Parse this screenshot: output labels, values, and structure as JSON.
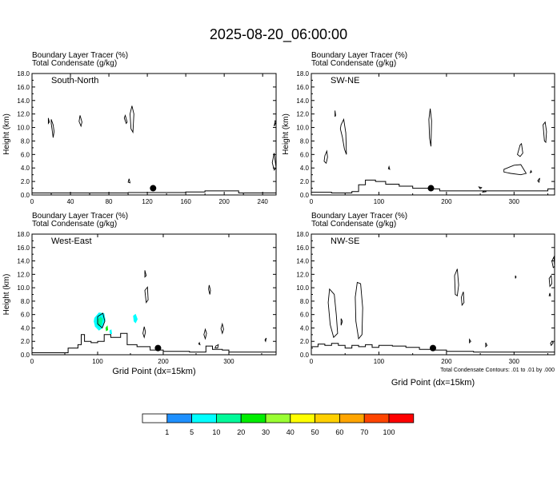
{
  "title": "2025-08-20_06:00:00",
  "colorbar": {
    "colors": [
      "#ffffff",
      "#1e90ff",
      "#00ffff",
      "#00fa9a",
      "#00ee00",
      "#9aff32",
      "#ffff00",
      "#ffd000",
      "#ffa500",
      "#ff4500",
      "#ff0000"
    ],
    "labels": [
      "1",
      "5",
      "10",
      "20",
      "30",
      "40",
      "50",
      "60",
      "70",
      "100"
    ]
  },
  "colors": {
    "axis": "#000000",
    "tracer_blue": "#1e90ff",
    "tracer_cyan": "#00ffff",
    "tracer_green": "#00fa9a"
  },
  "chart_data": [
    {
      "type": "contour",
      "header_line1": "Boundary Layer Tracer   (%)",
      "header_line2": "Total Condensate   (g/kg)",
      "label": "South-North",
      "xlabel": "",
      "ylabel": "Height (km)",
      "xlim": [
        0,
        254
      ],
      "ylim": [
        0,
        18
      ],
      "xticks": [
        "0",
        "40",
        "80",
        "120",
        "160",
        "200",
        "240"
      ],
      "yticks": [
        "0.0",
        "2.0",
        "4.0",
        "6.0",
        "8.0",
        "10.0",
        "12.0",
        "14.0",
        "16.0",
        "18.0"
      ],
      "marker": {
        "x": 126,
        "y": 1.0
      },
      "terrain": [
        [
          0,
          0.3
        ],
        [
          60,
          0.3
        ],
        [
          100,
          0.35
        ],
        [
          160,
          0.45
        ],
        [
          180,
          0.6
        ],
        [
          210,
          0.6
        ],
        [
          215,
          0.3
        ],
        [
          254,
          0.3
        ]
      ],
      "contours": [
        [
          [
            20,
            11.2
          ],
          [
            22,
            10.4
          ],
          [
            23,
            9.4
          ],
          [
            22,
            8.5
          ],
          [
            21,
            9.6
          ],
          [
            20,
            10.6
          ]
        ],
        [
          [
            17,
            11.4
          ],
          [
            18,
            10.8
          ],
          [
            17,
            10.6
          ]
        ],
        [
          [
            50,
            11.8
          ],
          [
            52,
            10.8
          ],
          [
            51,
            10.2
          ],
          [
            49,
            10.9
          ]
        ],
        [
          [
            97,
            11.8
          ],
          [
            99,
            10.8
          ],
          [
            98,
            10.6
          ],
          [
            96,
            11.4
          ]
        ],
        [
          [
            104,
            13.2
          ],
          [
            106,
            12.0
          ],
          [
            105,
            9.3
          ],
          [
            103,
            9.8
          ],
          [
            102,
            12.0
          ]
        ],
        [
          [
            101,
            2.4
          ],
          [
            102,
            1.8
          ],
          [
            100,
            1.9
          ]
        ],
        [
          [
            252,
            10.2
          ],
          [
            253,
            11.0
          ],
          [
            254,
            10.8
          ]
        ],
        [
          [
            252,
            6.2
          ],
          [
            250,
            4.8
          ],
          [
            252,
            3.7
          ],
          [
            254,
            4.0
          ]
        ]
      ]
    },
    {
      "type": "contour",
      "header_line1": "Boundary Layer Tracer   (%)",
      "header_line2": "Total Condensate   (g/kg)",
      "label": "SW-NE",
      "xlabel": "",
      "ylabel": "Height (km)",
      "xlim": [
        0,
        360
      ],
      "ylim": [
        0,
        18
      ],
      "xticks": [
        "0",
        "100",
        "200",
        "300"
      ],
      "yticks": [
        "0.0",
        "2.0",
        "4.0",
        "6.0",
        "8.0",
        "10.0",
        "12.0",
        "14.0",
        "16.0",
        "18.0"
      ],
      "marker": {
        "x": 177,
        "y": 1.0
      },
      "terrain": [
        [
          0,
          0.4
        ],
        [
          30,
          0.3
        ],
        [
          60,
          0.5
        ],
        [
          70,
          1.5
        ],
        [
          80,
          2.2
        ],
        [
          95,
          2.0
        ],
        [
          110,
          1.6
        ],
        [
          130,
          1.3
        ],
        [
          150,
          1.0
        ],
        [
          175,
          0.9
        ],
        [
          190,
          0.6
        ],
        [
          220,
          0.6
        ],
        [
          260,
          0.6
        ],
        [
          320,
          0.6
        ],
        [
          350,
          0.9
        ],
        [
          360,
          0.6
        ]
      ],
      "contours": [
        [
          [
            20,
            5.8
          ],
          [
            23,
            6.5
          ],
          [
            24,
            5.6
          ],
          [
            22,
            4.7
          ],
          [
            19,
            5.0
          ]
        ],
        [
          [
            44,
            10.4
          ],
          [
            48,
            11.2
          ],
          [
            51,
            9.2
          ],
          [
            52,
            6.0
          ],
          [
            49,
            6.8
          ],
          [
            46,
            8.6
          ],
          [
            43,
            9.8
          ]
        ],
        [
          [
            35,
            12.5
          ],
          [
            36,
            11.8
          ],
          [
            35,
            11.6
          ]
        ],
        [
          [
            115,
            4.2
          ],
          [
            116,
            3.8
          ],
          [
            114,
            3.9
          ]
        ],
        [
          [
            176,
            12.8
          ],
          [
            178,
            11.0
          ],
          [
            177,
            7.2
          ],
          [
            175,
            8.4
          ],
          [
            174,
            11.2
          ]
        ],
        [
          [
            305,
            6.0
          ],
          [
            309,
            7.4
          ],
          [
            311,
            7.6
          ],
          [
            313,
            6.2
          ],
          [
            309,
            5.7
          ]
        ],
        [
          [
            285,
            3.8
          ],
          [
            300,
            4.4
          ],
          [
            310,
            4.5
          ],
          [
            318,
            3.2
          ],
          [
            310,
            3.0
          ],
          [
            295,
            3.2
          ],
          [
            285,
            3.4
          ]
        ],
        [
          [
            343,
            10.4
          ],
          [
            346,
            10.8
          ],
          [
            348,
            9.4
          ],
          [
            347,
            7.8
          ],
          [
            345,
            8.0
          ]
        ],
        [
          [
            325,
            3.6
          ],
          [
            326,
            3.4
          ],
          [
            324,
            3.3
          ]
        ],
        [
          [
            335,
            2.1
          ],
          [
            338,
            2.5
          ],
          [
            337,
            1.9
          ]
        ],
        [
          [
            248,
            1.2
          ],
          [
            252,
            1.1
          ],
          [
            250,
            0.9
          ]
        ],
        [
          [
            253,
            0.4
          ],
          [
            256,
            0.6
          ],
          [
            259,
            0.5
          ]
        ]
      ]
    },
    {
      "type": "contour",
      "header_line1": "Boundary Layer Tracer   (%)",
      "header_line2": "Total Condensate   (g/kg)",
      "label": "West-East",
      "xlabel": "Grid Point (dx=15km)",
      "ylabel": "Height (km)",
      "xlim": [
        0,
        372
      ],
      "ylim": [
        0,
        18
      ],
      "xticks": [
        "0",
        "100",
        "200",
        "300"
      ],
      "yticks": [
        "0.0",
        "2.0",
        "4.0",
        "6.0",
        "8.0",
        "10.0",
        "12.0",
        "14.0",
        "16.0",
        "18.0"
      ],
      "marker": {
        "x": 192,
        "y": 1.0
      },
      "terrain": [
        [
          0,
          0.3
        ],
        [
          40,
          0.3
        ],
        [
          55,
          1.0
        ],
        [
          70,
          1.5
        ],
        [
          75,
          3.0
        ],
        [
          80,
          2.0
        ],
        [
          90,
          1.8
        ],
        [
          100,
          2.0
        ],
        [
          110,
          3.0
        ],
        [
          120,
          2.6
        ],
        [
          135,
          3.2
        ],
        [
          145,
          1.5
        ],
        [
          160,
          1.2
        ],
        [
          180,
          0.7
        ],
        [
          200,
          0.5
        ],
        [
          240,
          0.4
        ],
        [
          265,
          1.3
        ],
        [
          275,
          0.8
        ],
        [
          290,
          0.7
        ],
        [
          300,
          0.4
        ],
        [
          372,
          0.3
        ]
      ],
      "tracer": [
        {
          "value": 5,
          "points": [
            [
              95,
              5.5
            ],
            [
              102,
              6.3
            ],
            [
              110,
              6.2
            ],
            [
              112,
              5.2
            ],
            [
              108,
              4.0
            ],
            [
              102,
              3.6
            ],
            [
              96,
              4.2
            ],
            [
              94,
              5.0
            ]
          ]
        },
        {
          "value": 10,
          "points": [
            [
              100,
              5.2
            ],
            [
              104,
              5.7
            ],
            [
              108,
              5.4
            ],
            [
              106,
              4.4
            ],
            [
              101,
              4.3
            ]
          ]
        },
        {
          "value": 20,
          "points": [
            [
              112,
              4.0
            ],
            [
              115,
              4.4
            ],
            [
              116,
              3.7
            ],
            [
              113,
              3.5
            ]
          ]
        },
        {
          "value": 5,
          "points": [
            [
              154,
              5.8
            ],
            [
              158,
              6.1
            ],
            [
              161,
              5.3
            ],
            [
              158,
              4.7
            ],
            [
              155,
              5.0
            ]
          ]
        },
        {
          "value": 5,
          "points": [
            [
              118,
              3.6
            ],
            [
              121,
              3.8
            ],
            [
              122,
              3.1
            ],
            [
              119,
              3.1
            ]
          ]
        }
      ],
      "contours": [
        [
          [
            100,
            5.7
          ],
          [
            108,
            6.2
          ],
          [
            111,
            5.0
          ],
          [
            107,
            4.0
          ],
          [
            100,
            4.6
          ]
        ],
        [
          [
            172,
            12.6
          ],
          [
            174,
            11.8
          ],
          [
            172,
            11.6
          ]
        ],
        [
          [
            172,
            9.6
          ],
          [
            176,
            10.1
          ],
          [
            177,
            8.2
          ],
          [
            174,
            7.8
          ]
        ],
        [
          [
            171,
            4.2
          ],
          [
            173,
            3.4
          ],
          [
            171,
            2.6
          ],
          [
            169,
            3.2
          ]
        ],
        [
          [
            270,
            10.4
          ],
          [
            272,
            9.6
          ],
          [
            271,
            9.0
          ],
          [
            269,
            9.8
          ]
        ],
        [
          [
            264,
            2.4
          ],
          [
            266,
            3.2
          ],
          [
            264,
            3.8
          ],
          [
            262,
            3.0
          ]
        ],
        [
          [
            290,
            4.6
          ],
          [
            292,
            3.8
          ],
          [
            290,
            3.2
          ],
          [
            288,
            3.9
          ]
        ],
        [
          [
            355,
            2.2
          ],
          [
            357,
            2.5
          ],
          [
            356,
            2.0
          ]
        ],
        [
          [
            280,
            1.3
          ],
          [
            284,
            1.5
          ],
          [
            283,
            1.0
          ],
          [
            279,
            1.0
          ]
        ],
        [
          [
            255,
            1.8
          ],
          [
            256,
            1.5
          ],
          [
            254,
            1.6
          ]
        ]
      ]
    },
    {
      "type": "contour",
      "header_line1": "",
      "header_line2": "",
      "label": "NW-SE",
      "xlabel": "Grid Point (dx=15km)",
      "ylabel": "",
      "xlim": [
        0,
        360
      ],
      "ylim": [
        0,
        18
      ],
      "xticks": [
        "0",
        "100",
        "200",
        "300"
      ],
      "yticks": [
        "0.0",
        "2.0",
        "4.0",
        "6.0",
        "8.0",
        "10.0",
        "12.0",
        "14.0",
        "16.0",
        "18.0"
      ],
      "marker": {
        "x": 180,
        "y": 1.0
      },
      "footnote": "Total Condensate Contours: .01 to .01 by .000",
      "terrain": [
        [
          0,
          1.2
        ],
        [
          10,
          1.6
        ],
        [
          20,
          1.4
        ],
        [
          30,
          1.7
        ],
        [
          40,
          1.4
        ],
        [
          50,
          1.0
        ],
        [
          60,
          1.4
        ],
        [
          70,
          1.2
        ],
        [
          80,
          1.5
        ],
        [
          90,
          1.1
        ],
        [
          100,
          1.4
        ],
        [
          120,
          1.3
        ],
        [
          140,
          1.1
        ],
        [
          160,
          0.8
        ],
        [
          180,
          0.7
        ],
        [
          200,
          0.5
        ],
        [
          240,
          0.4
        ],
        [
          300,
          0.4
        ],
        [
          360,
          0.4
        ]
      ],
      "contours": [
        [
          [
            27,
            9.8
          ],
          [
            34,
            9.0
          ],
          [
            37,
            6.0
          ],
          [
            39,
            3.2
          ],
          [
            33,
            2.6
          ],
          [
            28,
            4.5
          ],
          [
            25,
            7.8
          ]
        ],
        [
          [
            68,
            10.8
          ],
          [
            73,
            10.6
          ],
          [
            76,
            7.0
          ],
          [
            75,
            3.0
          ],
          [
            70,
            2.4
          ],
          [
            66,
            5.0
          ],
          [
            65,
            8.6
          ]
        ],
        [
          [
            44,
            5.4
          ],
          [
            46,
            5.0
          ],
          [
            44,
            4.4
          ]
        ],
        [
          [
            212,
            11.8
          ],
          [
            216,
            12.8
          ],
          [
            218,
            10.4
          ],
          [
            216,
            8.8
          ],
          [
            213,
            9.0
          ]
        ],
        [
          [
            222,
            8.6
          ],
          [
            225,
            9.4
          ],
          [
            226,
            7.8
          ],
          [
            223,
            7.4
          ]
        ],
        [
          [
            302,
            11.8
          ],
          [
            303,
            11.6
          ],
          [
            302,
            11.4
          ]
        ],
        [
          [
            352,
            11.4
          ],
          [
            355,
            11.8
          ],
          [
            356,
            10.6
          ],
          [
            353,
            10.2
          ]
        ],
        [
          [
            356,
            14.0
          ],
          [
            359,
            14.6
          ],
          [
            360,
            13.2
          ],
          [
            358,
            13.0
          ]
        ],
        [
          [
            353,
            9.2
          ],
          [
            354,
            8.8
          ],
          [
            352,
            8.8
          ]
        ],
        [
          [
            356,
            2.0
          ],
          [
            358,
            1.8
          ],
          [
            355,
            1.4
          ],
          [
            354,
            1.7
          ]
        ],
        [
          [
            234,
            2.3
          ],
          [
            236,
            2.0
          ],
          [
            234,
            1.8
          ]
        ],
        [
          [
            258,
            1.8
          ],
          [
            260,
            1.4
          ],
          [
            258,
            1.2
          ]
        ]
      ]
    }
  ]
}
